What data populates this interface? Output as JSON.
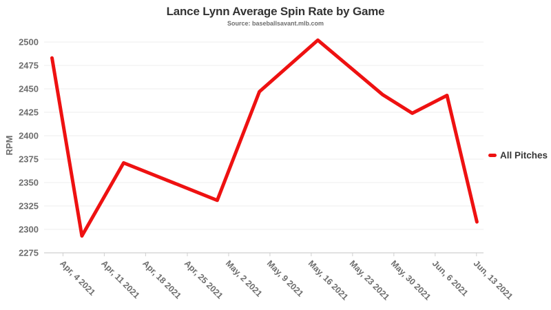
{
  "page": {
    "background": "#ffffff"
  },
  "chart_data": {
    "type": "line",
    "title": "Lance Lynn Average Spin Rate by Game",
    "subtitle": "Source: baseballsavant.mlb.com",
    "ylabel": "RPM",
    "xlabel": "",
    "ylim": [
      2275,
      2500
    ],
    "y_ticks": [
      2275,
      2300,
      2325,
      2350,
      2375,
      2400,
      2425,
      2450,
      2475,
      2500
    ],
    "x_tick_labels": [
      "Apr, 4 2021",
      "Apr, 11 2021",
      "Apr, 18 2021",
      "Apr, 25 2021",
      "May, 2 2021",
      "May, 9 2021",
      "May, 16 2021",
      "May, 23 2021",
      "May, 30 2021",
      "Jun, 6 2021",
      "Jun, 13 2021"
    ],
    "x_tick_pos": [
      0.043,
      0.137,
      0.231,
      0.326,
      0.42,
      0.514,
      0.608,
      0.702,
      0.796,
      0.89,
      0.984
    ],
    "grid": "horizontal",
    "legend": {
      "position": "right",
      "entries": [
        {
          "label": "All Pitches",
          "color": "#ee1111"
        }
      ]
    },
    "series": [
      {
        "name": "All Pitches",
        "color": "#ee1111",
        "stroke_width": 5,
        "points": [
          {
            "x": 0.018,
            "rpm": 2483
          },
          {
            "x": 0.086,
            "rpm": 2293
          },
          {
            "x": 0.181,
            "rpm": 2371
          },
          {
            "x": 0.394,
            "rpm": 2331
          },
          {
            "x": 0.49,
            "rpm": 2447
          },
          {
            "x": 0.623,
            "rpm": 2502
          },
          {
            "x": 0.77,
            "rpm": 2444
          },
          {
            "x": 0.838,
            "rpm": 2424
          },
          {
            "x": 0.917,
            "rpm": 2443
          },
          {
            "x": 0.985,
            "rpm": 2308
          }
        ]
      }
    ],
    "colors": {
      "line": "#ee1111",
      "title_text": "#333333",
      "axis_text": "#6e6e6e",
      "gridline": "#ededed",
      "axis_line": "#cfcfcf"
    }
  }
}
